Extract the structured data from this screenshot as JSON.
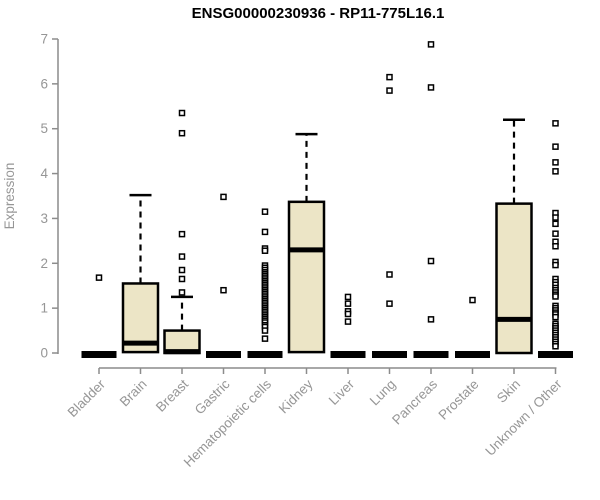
{
  "chart_data": {
    "type": "boxplot",
    "title": "ENSG00000230936 - RP11-775L16.1",
    "ylabel": "Expression",
    "xlabel": "",
    "ylim": [
      0,
      7
    ],
    "yticks": [
      0,
      1,
      2,
      3,
      4,
      5,
      6,
      7
    ],
    "grid": false,
    "legend": "none",
    "categories": [
      "Bladder",
      "Brain",
      "Breast",
      "Gastric",
      "Hematopoietic cells",
      "Kidney",
      "Liver",
      "Lung",
      "Pancreas",
      "Prostate",
      "Skin",
      "Unknown / Other"
    ],
    "series": [
      {
        "name": "Bladder",
        "whisker_low": 0,
        "q1": 0,
        "median": 0,
        "q3": 0,
        "whisker_high": 0,
        "outliers": [
          1.68
        ]
      },
      {
        "name": "Brain",
        "whisker_low": 0,
        "q1": 0.02,
        "median": 0.22,
        "q3": 1.55,
        "whisker_high": 3.52,
        "outliers": []
      },
      {
        "name": "Breast",
        "whisker_low": 0,
        "q1": 0,
        "median": 0.03,
        "q3": 0.5,
        "whisker_high": 1.25,
        "outliers": [
          5.35,
          4.9,
          2.65,
          2.15,
          1.85,
          1.65,
          1.35
        ]
      },
      {
        "name": "Gastric",
        "whisker_low": 0,
        "q1": 0,
        "median": 0,
        "q3": 0,
        "whisker_high": 0,
        "outliers": [
          3.48,
          1.4
        ]
      },
      {
        "name": "Hematopoietic cells",
        "whisker_low": 0,
        "q1": 0,
        "median": 0,
        "q3": 0,
        "whisker_high": 0,
        "outliers": [
          3.15,
          2.7,
          2.33,
          2.28,
          1.95,
          1.9,
          1.85,
          1.8,
          1.76,
          1.72,
          1.68,
          1.64,
          1.6,
          1.56,
          1.52,
          1.48,
          1.44,
          1.4,
          1.36,
          1.32,
          1.28,
          1.24,
          1.2,
          1.16,
          1.12,
          1.08,
          1.04,
          1.0,
          0.96,
          0.92,
          0.88,
          0.84,
          0.8,
          0.76,
          0.72,
          0.68,
          0.62,
          0.58,
          0.5,
          0.32
        ]
      },
      {
        "name": "Kidney",
        "whisker_low": 0,
        "q1": 0.02,
        "median": 2.3,
        "q3": 3.37,
        "whisker_high": 4.88,
        "outliers": []
      },
      {
        "name": "Liver",
        "whisker_low": 0,
        "q1": 0,
        "median": 0,
        "q3": 0,
        "whisker_high": 0,
        "outliers": [
          1.25,
          1.1,
          0.93,
          0.87,
          0.7
        ]
      },
      {
        "name": "Lung",
        "whisker_low": 0,
        "q1": 0,
        "median": 0,
        "q3": 0,
        "whisker_high": 0,
        "outliers": [
          6.15,
          5.85,
          1.75,
          1.1
        ]
      },
      {
        "name": "Pancreas",
        "whisker_low": 0,
        "q1": 0,
        "median": 0,
        "q3": 0,
        "whisker_high": 0,
        "outliers": [
          6.88,
          5.92,
          2.05,
          0.75
        ]
      },
      {
        "name": "Prostate",
        "whisker_low": 0,
        "q1": 0,
        "median": 0,
        "q3": 0,
        "whisker_high": 0,
        "outliers": [
          1.18
        ]
      },
      {
        "name": "Skin",
        "whisker_low": 0,
        "q1": 0,
        "median": 0.75,
        "q3": 3.33,
        "whisker_high": 5.2,
        "outliers": []
      },
      {
        "name": "Unknown / Other",
        "whisker_low": 0,
        "q1": 0,
        "median": 0,
        "q3": 0,
        "whisker_high": 0,
        "outliers": [
          5.12,
          4.6,
          4.25,
          4.05,
          3.12,
          3.02,
          2.88,
          2.66,
          2.48,
          2.38,
          2.03,
          1.96,
          1.65,
          1.58,
          1.52,
          1.45,
          1.4,
          1.35,
          1.3,
          1.26,
          1.05,
          1.0,
          0.95,
          0.9,
          0.86,
          0.8,
          0.65,
          0.6,
          0.55,
          0.5,
          0.45,
          0.4,
          0.35,
          0.3,
          0.25,
          0.2,
          0.15
        ]
      }
    ],
    "colors": {
      "box_fill": "#ECE5C6",
      "box_border": "#000000",
      "median": "#000000",
      "outlier": "#000000",
      "axis": "#8C8C8C",
      "tick_label": "#969696",
      "title": "#000000",
      "background": "#FFFFFF"
    }
  }
}
